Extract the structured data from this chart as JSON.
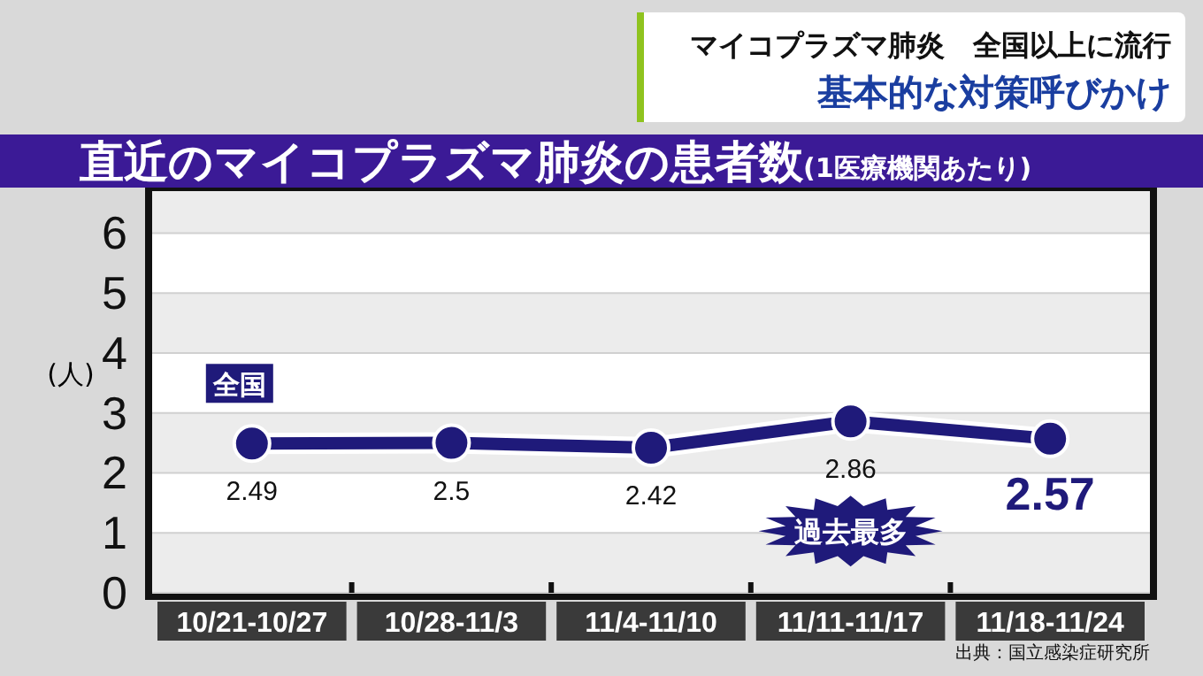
{
  "chart_data": {
    "type": "line",
    "title": "直近のマイコプラズマ肺炎の患者数",
    "subtitle": "(1医療機関あたり)",
    "ylabel": "(人)",
    "categories": [
      "10/21-10/27",
      "10/28-11/3",
      "11/4-11/10",
      "11/11-11/17",
      "11/18-11/24"
    ],
    "series": [
      {
        "name": "全国",
        "color": "#1f1a7a",
        "values": [
          2.49,
          2.5,
          2.42,
          2.86,
          2.57
        ]
      }
    ],
    "ylim": [
      0,
      6.7
    ],
    "yticks": [
      0,
      1,
      2,
      3,
      4,
      5,
      6
    ],
    "grid": true,
    "marker": "circle",
    "line_style": "solid",
    "data_labels": true,
    "annotations": [
      "マイコプラズマ肺炎　全国以上に流行",
      "基本的な対策呼びかけ",
      "出典：国立感染症研究所",
      "過去最多"
    ]
  }
}
